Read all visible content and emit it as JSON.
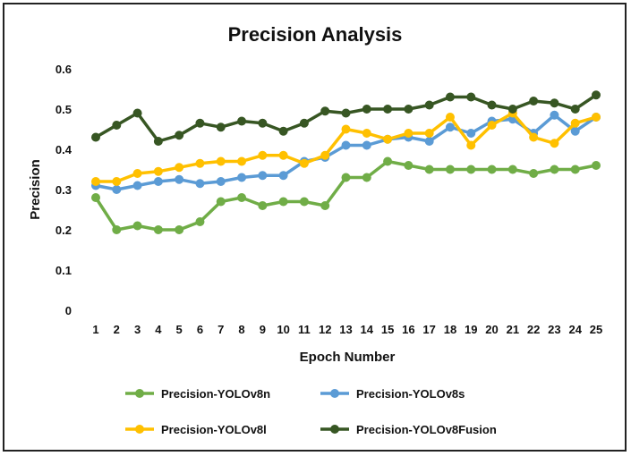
{
  "chart_data": {
    "type": "line",
    "title": "Precision Analysis",
    "xlabel": "Epoch Number",
    "ylabel": "Precision",
    "ylim": [
      0,
      0.6
    ],
    "yticks": [
      "0",
      "0.1",
      "0.2",
      "0.3",
      "0.4",
      "0.5",
      "0.6"
    ],
    "categories": [
      "1",
      "2",
      "3",
      "4",
      "5",
      "6",
      "7",
      "8",
      "9",
      "10",
      "11",
      "12",
      "13",
      "14",
      "15",
      "16",
      "17",
      "18",
      "19",
      "20",
      "21",
      "22",
      "23",
      "24",
      "25"
    ],
    "grid": false,
    "legend": "bottom",
    "series": [
      {
        "name": "Precision-YOLOv8n",
        "color": "#70ad47",
        "values": [
          0.28,
          0.2,
          0.21,
          0.2,
          0.2,
          0.22,
          0.27,
          0.28,
          0.26,
          0.27,
          0.27,
          0.26,
          0.33,
          0.33,
          0.37,
          0.36,
          0.35,
          0.35,
          0.35,
          0.35,
          0.35,
          0.34,
          0.35,
          0.35,
          0.36
        ]
      },
      {
        "name": "Precision-YOLOv8s",
        "color": "#5b9bd5",
        "values": [
          0.31,
          0.3,
          0.31,
          0.32,
          0.325,
          0.315,
          0.32,
          0.33,
          0.335,
          0.335,
          0.37,
          0.38,
          0.41,
          0.41,
          0.425,
          0.43,
          0.42,
          0.455,
          0.44,
          0.47,
          0.475,
          0.44,
          0.485,
          0.445,
          0.48
        ]
      },
      {
        "name": "Precision-YOLOv8l",
        "color": "#ffc000",
        "values": [
          0.32,
          0.32,
          0.34,
          0.345,
          0.355,
          0.365,
          0.37,
          0.37,
          0.385,
          0.385,
          0.365,
          0.385,
          0.45,
          0.44,
          0.425,
          0.44,
          0.44,
          0.48,
          0.41,
          0.46,
          0.49,
          0.43,
          0.415,
          0.465,
          0.48
        ]
      },
      {
        "name": "Precision-YOLOv8Fusion",
        "color": "#375623",
        "values": [
          0.43,
          0.46,
          0.49,
          0.42,
          0.435,
          0.465,
          0.455,
          0.47,
          0.465,
          0.445,
          0.465,
          0.495,
          0.49,
          0.5,
          0.5,
          0.5,
          0.51,
          0.53,
          0.53,
          0.51,
          0.5,
          0.52,
          0.515,
          0.5,
          0.535
        ]
      }
    ]
  }
}
